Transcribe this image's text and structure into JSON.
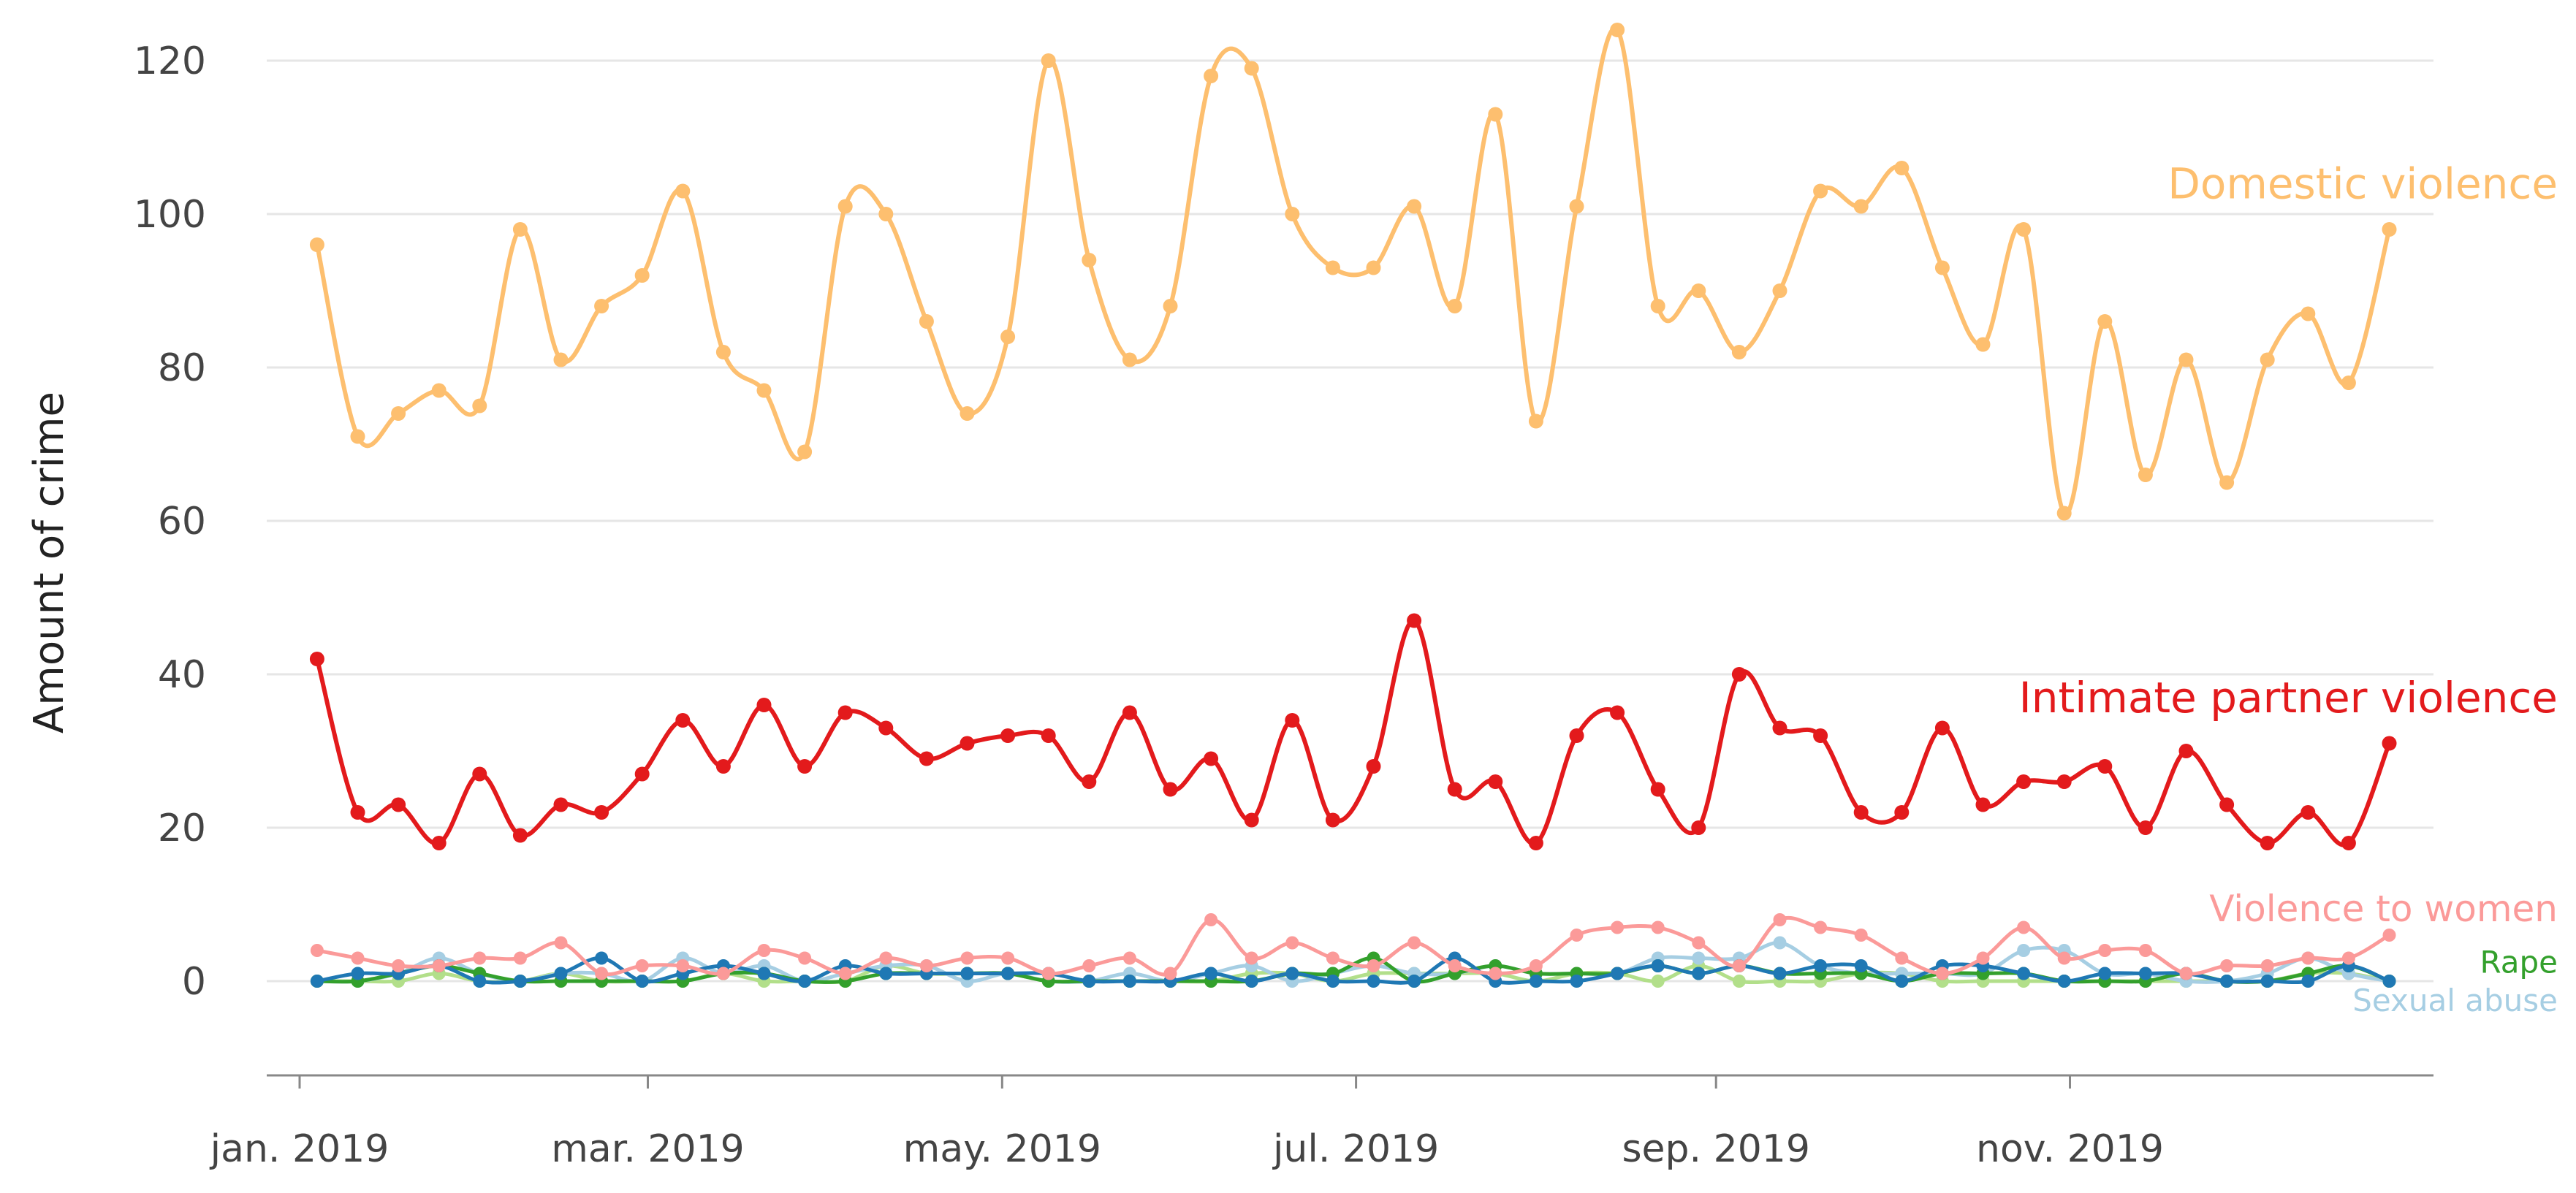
{
  "chart_data": {
    "type": "line",
    "title": "",
    "xlabel": "",
    "ylabel": "Amount of crime",
    "ylim": [
      -12,
      124
    ],
    "yticks": [
      0,
      20,
      40,
      60,
      80,
      100,
      120
    ],
    "xlim": [
      0,
      52
    ],
    "x_tick_labels": [
      {
        "label": "jan. 2019",
        "week": 0
      },
      {
        "label": "mar. 2019",
        "week": 8.57
      },
      {
        "label": "may. 2019",
        "week": 17.29
      },
      {
        "label": "jul. 2019",
        "week": 26
      },
      {
        "label": "sep. 2019",
        "week": 34.86
      },
      {
        "label": "nov. 2019",
        "week": 43.57
      }
    ],
    "grid": true,
    "x_weeks": [
      0.43,
      1.43,
      2.43,
      3.43,
      4.43,
      5.43,
      6.43,
      7.43,
      8.43,
      9.43,
      10.43,
      11.43,
      12.43,
      13.43,
      14.43,
      15.43,
      16.43,
      17.43,
      18.43,
      19.43,
      20.43,
      21.43,
      22.43,
      23.43,
      24.43,
      25.43,
      26.43,
      27.43,
      28.43,
      29.43,
      30.43,
      31.43,
      32.43,
      33.43,
      34.43,
      35.43,
      36.43,
      37.43,
      38.43,
      39.43,
      40.43,
      41.43,
      42.43,
      43.43,
      44.43,
      45.43,
      46.43,
      47.43,
      48.43,
      49.43,
      50.43,
      51.43
    ],
    "series": [
      {
        "name": "Domestic violence",
        "color": "#fdbf6f",
        "values": [
          96,
          71,
          74,
          77,
          75,
          98,
          81,
          88,
          92,
          103,
          82,
          77,
          69,
          101,
          100,
          86,
          74,
          84,
          120,
          94,
          81,
          88,
          118,
          119,
          100,
          93,
          93,
          101,
          88,
          113,
          73,
          101,
          124,
          88,
          90,
          82,
          90,
          103,
          101,
          106,
          93,
          83,
          98,
          61,
          86,
          66,
          81,
          65,
          81,
          87,
          78,
          98
        ]
      },
      {
        "name": "Intimate partner violence",
        "color": "#e31a1c",
        "values": [
          42,
          22,
          23,
          18,
          27,
          19,
          23,
          22,
          27,
          34,
          28,
          36,
          28,
          35,
          33,
          29,
          31,
          32,
          32,
          26,
          35,
          25,
          29,
          21,
          34,
          21,
          28,
          47,
          25,
          26,
          18,
          32,
          35,
          25,
          20,
          40,
          33,
          32,
          22,
          22,
          33,
          23,
          26,
          26,
          28,
          20,
          30,
          23,
          18,
          22,
          18,
          31
        ]
      },
      {
        "name": "Violence to women",
        "color": "#fb9a99",
        "values": [
          4,
          3,
          2,
          2,
          3,
          3,
          5,
          1,
          2,
          2,
          1,
          4,
          3,
          1,
          3,
          2,
          3,
          3,
          1,
          2,
          3,
          1,
          8,
          3,
          5,
          3,
          2,
          5,
          2,
          1,
          2,
          6,
          7,
          7,
          5,
          2,
          8,
          7,
          6,
          3,
          1,
          3,
          7,
          3,
          4,
          4,
          1,
          2,
          2,
          3,
          3,
          6
        ]
      },
      {
        "name": "Rape",
        "color": "#1f78b4",
        "values": [
          0,
          1,
          1,
          2,
          0,
          0,
          1,
          3,
          0,
          1,
          2,
          1,
          0,
          2,
          1,
          1,
          1,
          1,
          1,
          0,
          0,
          0,
          1,
          0,
          1,
          0,
          0,
          0,
          3,
          0,
          0,
          0,
          1,
          2,
          1,
          2,
          1,
          2,
          2,
          0,
          2,
          2,
          1,
          0,
          1,
          1,
          1,
          0,
          0,
          0,
          2,
          0
        ]
      },
      {
        "name": "Rape",
        "color": "#33a02c",
        "values": [
          0,
          0,
          1,
          2,
          1,
          0,
          0,
          0,
          0,
          0,
          1,
          1,
          0,
          0,
          1,
          1,
          1,
          1,
          0,
          0,
          0,
          0,
          0,
          0,
          1,
          1,
          3,
          0,
          1,
          2,
          1,
          1,
          1,
          2,
          1,
          2,
          1,
          1,
          1,
          0,
          1,
          1,
          1,
          0,
          0,
          0,
          1,
          0,
          0,
          1,
          2,
          0
        ]
      },
      {
        "name": "Sexual abuse",
        "color": "#a6cee3",
        "values": [
          0,
          0,
          1,
          3,
          1,
          0,
          1,
          1,
          0,
          3,
          1,
          2,
          0,
          1,
          2,
          2,
          0,
          1,
          0,
          0,
          1,
          0,
          1,
          2,
          0,
          1,
          2,
          1,
          1,
          2,
          1,
          1,
          1,
          3,
          3,
          3,
          5,
          2,
          1,
          1,
          1,
          1,
          4,
          4,
          1,
          1,
          0,
          0,
          1,
          3,
          1,
          0
        ]
      },
      {
        "name": "Sexual abuse",
        "color": "#b2df8a",
        "values": [
          0,
          0,
          0,
          1,
          0,
          0,
          1,
          0,
          0,
          0,
          1,
          0,
          0,
          0,
          2,
          1,
          1,
          1,
          0,
          0,
          0,
          0,
          0,
          1,
          1,
          0,
          1,
          1,
          1,
          1,
          0,
          1,
          1,
          0,
          2,
          0,
          0,
          0,
          1,
          1,
          0,
          0,
          0,
          0,
          0,
          0,
          0,
          0,
          0,
          1,
          1,
          0
        ]
      }
    ],
    "annotations": [
      {
        "text": "Domestic violence",
        "color": "#fdbf6f",
        "value": 104
      },
      {
        "text": "Intimate partner violence",
        "color": "#e31a1c",
        "value": 37
      },
      {
        "text": "Violence to women",
        "color": "#fb9a99",
        "value": 9.5
      },
      {
        "text": "Rape",
        "color": "#33a02c",
        "value": 2.5
      },
      {
        "text": "Sexual abuse",
        "color": "#a6cee3",
        "value": -2.5
      }
    ]
  }
}
